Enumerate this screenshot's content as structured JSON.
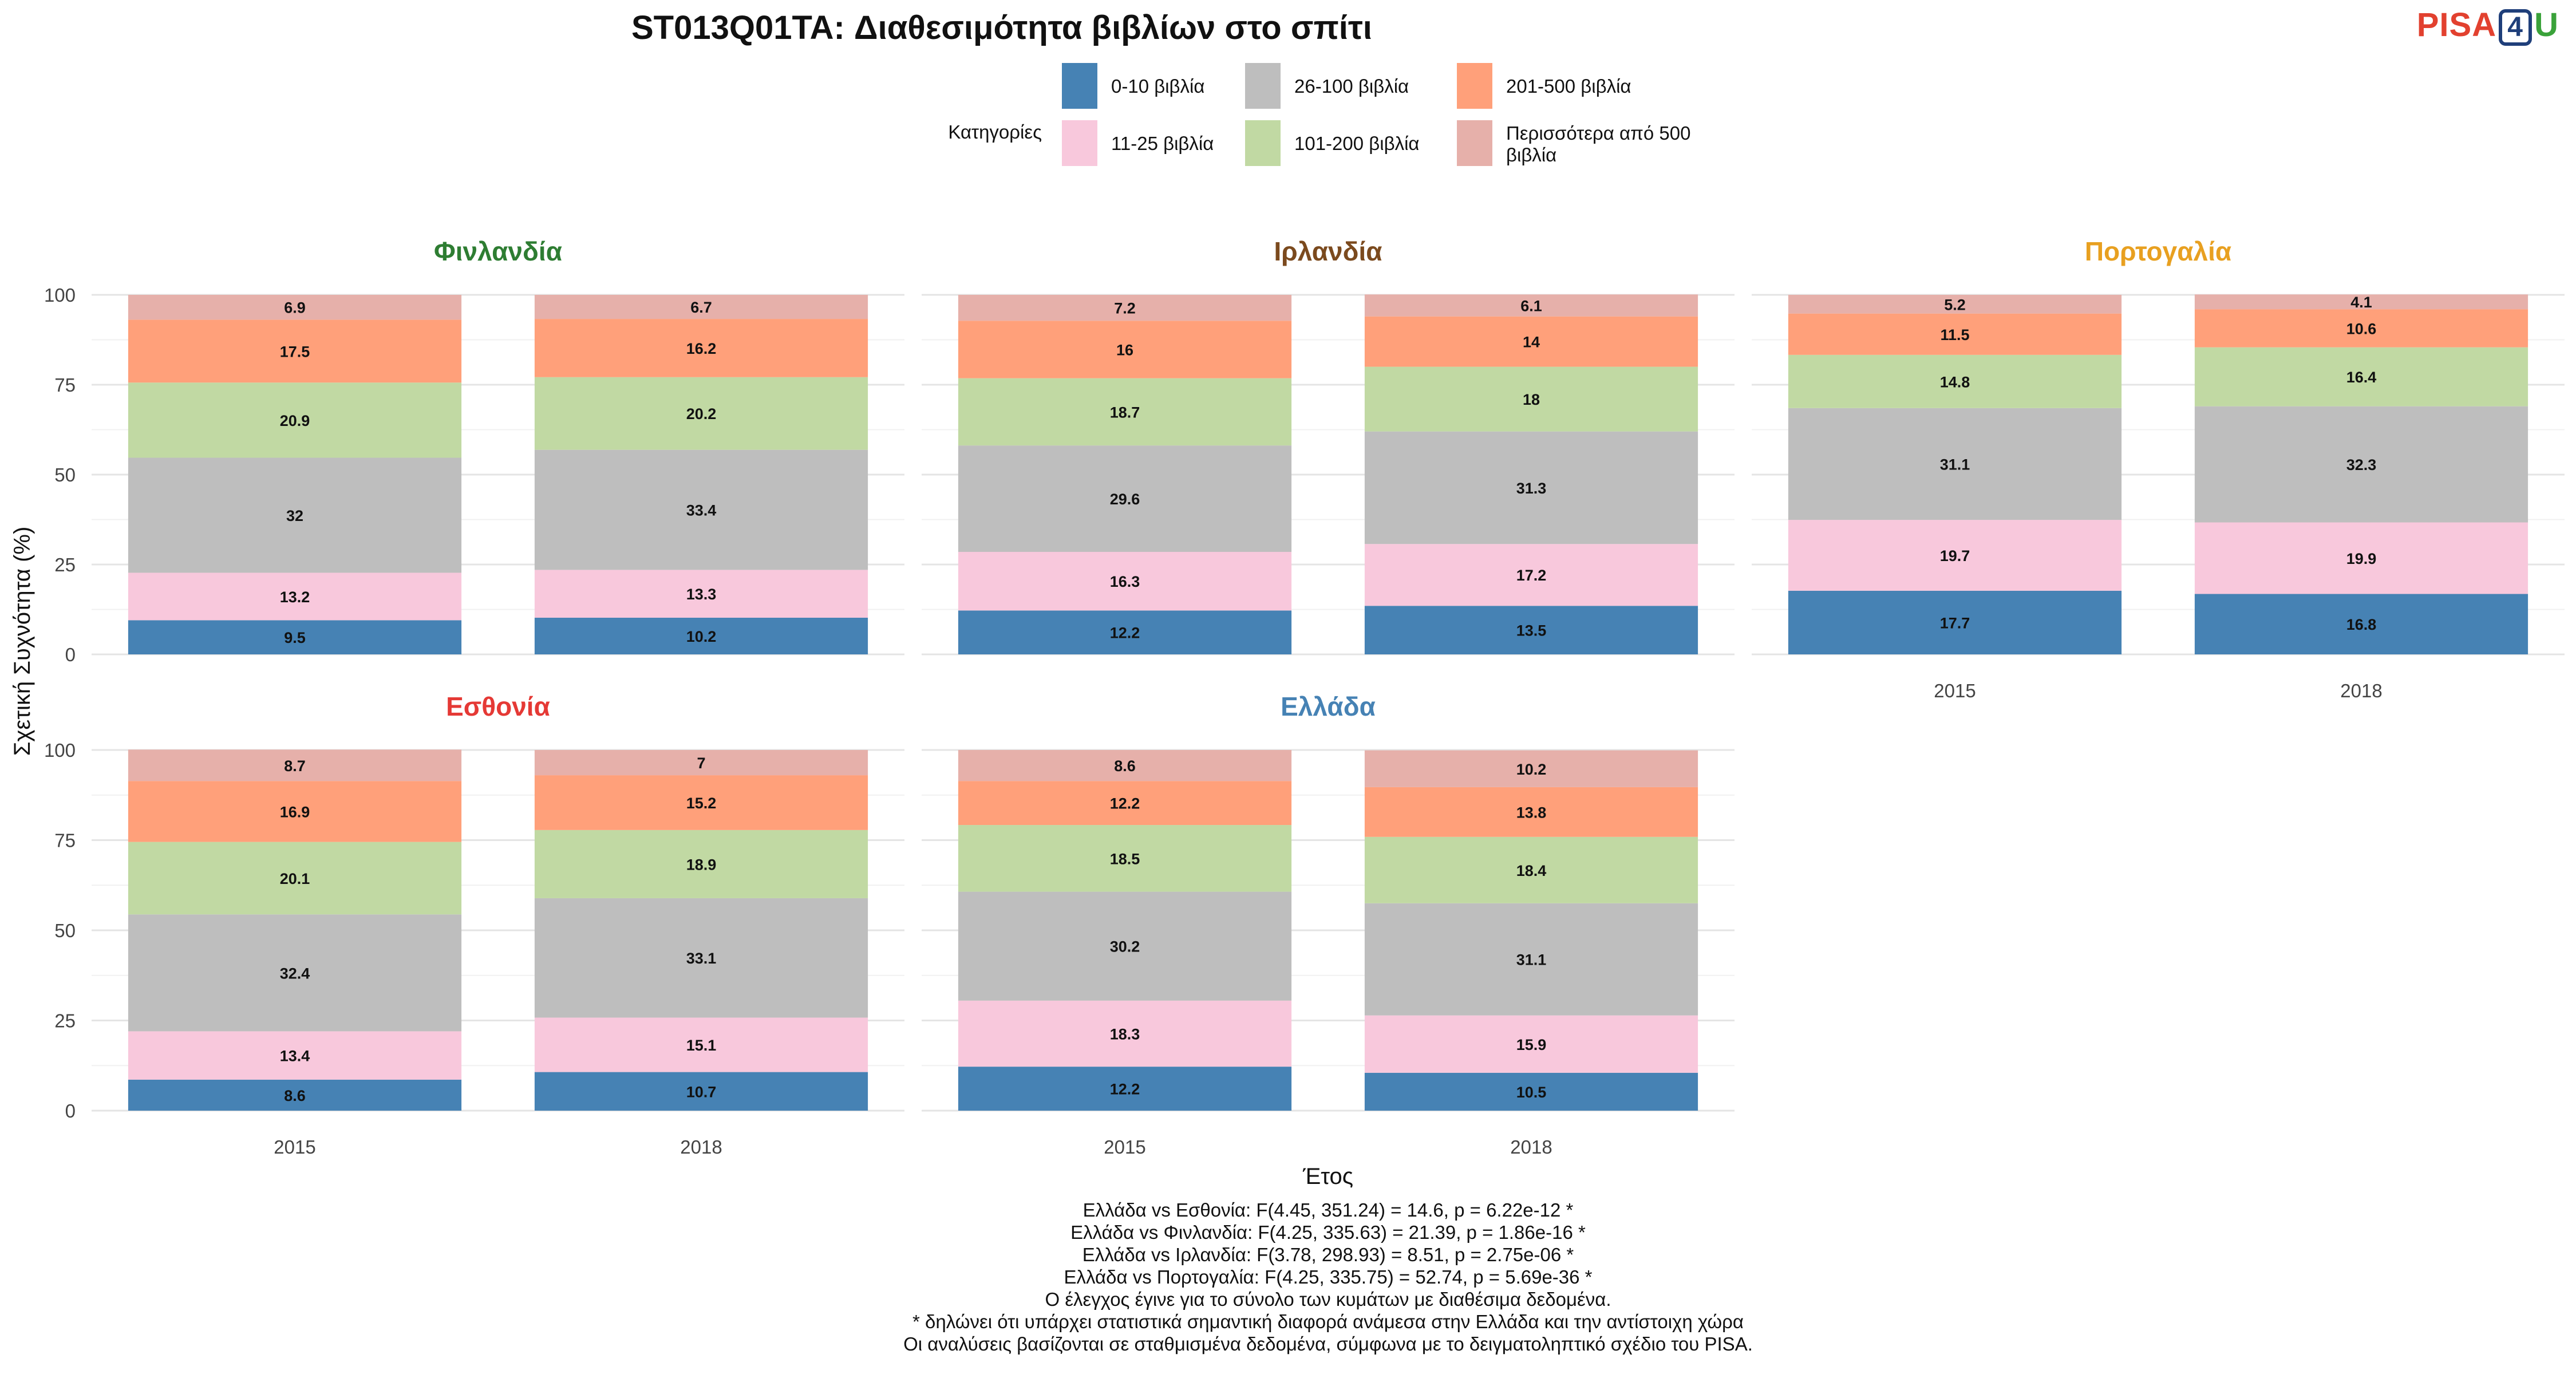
{
  "logo": {
    "text_left": "PISA",
    "text_box": "4",
    "text_right": "U"
  },
  "chart_data": {
    "type": "bar",
    "stacked": true,
    "title": "ST013Q01TA: Διαθεσιμότητα βιβλίων στο σπίτι",
    "xlabel": "Έτος",
    "ylabel": "Σχετική Συχνότητα (%)",
    "ylim": [
      0,
      100
    ],
    "yticks": [
      0,
      25,
      50,
      75,
      100
    ],
    "categories": [
      "2015",
      "2018"
    ],
    "legend": {
      "title": "Κατηγορίες",
      "placement": "top",
      "entries": [
        {
          "label": "0-10 βιβλία",
          "color": "#4682b4"
        },
        {
          "label": "11-25 βιβλία",
          "color": "#f8c8dc"
        },
        {
          "label": "26-100 βιβλία",
          "color": "#bebebe"
        },
        {
          "label": "101-200 βιβλία",
          "color": "#c1d9a3"
        },
        {
          "label": "201-500 βιβλία",
          "color": "#ffa07a"
        },
        {
          "label": "Περισσότερα από 500 βιβλία",
          "color": "#e6b0aa"
        }
      ]
    },
    "panels": [
      {
        "country": "Φινλανδία",
        "title_color": "#2e7d32",
        "values": {
          "2015": [
            9.5,
            13.2,
            32,
            20.9,
            17.5,
            6.9
          ],
          "2018": [
            10.2,
            13.3,
            33.4,
            20.2,
            16.2,
            6.7
          ]
        }
      },
      {
        "country": "Ιρλανδία",
        "title_color": "#7b4a1e",
        "values": {
          "2015": [
            12.2,
            16.3,
            29.6,
            18.7,
            16,
            7.2
          ],
          "2018": [
            13.5,
            17.2,
            31.3,
            18,
            14,
            6.1
          ]
        }
      },
      {
        "country": "Πορτογαλία",
        "title_color": "#e8a020",
        "values": {
          "2015": [
            17.7,
            19.7,
            31.1,
            14.8,
            11.5,
            5.2
          ],
          "2018": [
            16.8,
            19.9,
            32.3,
            16.4,
            10.6,
            4.1
          ]
        }
      },
      {
        "country": "Εσθονία",
        "title_color": "#e53935",
        "values": {
          "2015": [
            8.6,
            13.4,
            32.4,
            20.1,
            16.9,
            8.7
          ],
          "2018": [
            10.7,
            15.1,
            33.1,
            18.9,
            15.2,
            7
          ]
        }
      },
      {
        "country": "Ελλάδα",
        "title_color": "#4682b4",
        "values": {
          "2015": [
            12.2,
            18.3,
            30.2,
            18.5,
            12.2,
            8.6
          ],
          "2018": [
            10.5,
            15.9,
            31.1,
            18.4,
            13.8,
            10.2
          ]
        }
      }
    ],
    "caption": [
      "Ελλάδα vs Εσθονία: F(4.45, 351.24) = 14.6, p = 6.22e-12 *",
      "Ελλάδα vs Φινλανδία: F(4.25, 335.63) = 21.39, p = 1.86e-16 *",
      "Ελλάδα vs Ιρλανδία: F(3.78, 298.93) = 8.51, p = 2.75e-06 *",
      "Ελλάδα vs Πορτογαλία: F(4.25, 335.75) = 52.74, p = 5.69e-36 *",
      "Ο έλεγχος έγινε για το σύνολο των κυμάτων με διαθέσιμα δεδομένα.",
      "* δηλώνει ότι υπάρχει στατιστικά σημαντική διαφορά ανάμεσα στην Ελλάδα και την αντίστοιχη χώρα",
      "Οι αναλύσεις βασίζονται σε σταθμισμένα δεδομένα, σύμφωνα με το δειγματοληπτικό σχέδιο του PISA."
    ]
  }
}
